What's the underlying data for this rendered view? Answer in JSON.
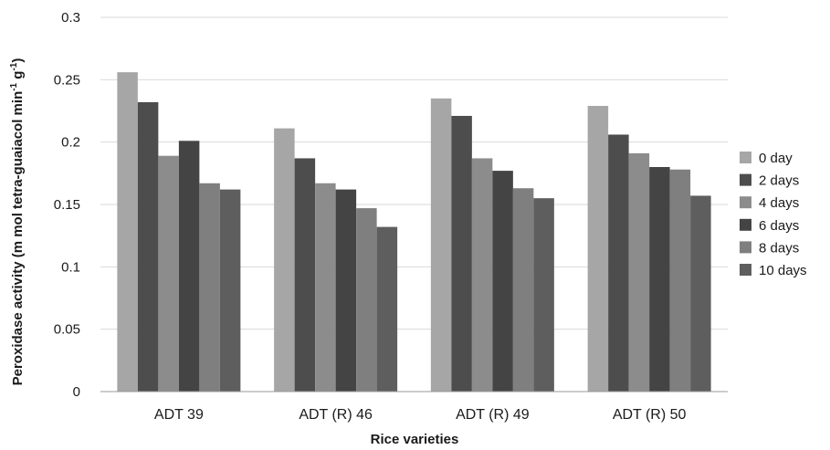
{
  "chart_data": {
    "type": "bar",
    "xlabel": "Rice varieties",
    "ylabel": {
      "main": "Peroxidase activity (m mol tetra-guaiacol min",
      "sup1": "-1",
      "mid": " g",
      "sup2": "-1",
      "end": ")"
    },
    "ylim": [
      0,
      0.3
    ],
    "yticks": [
      "0",
      "0.05",
      "0.1",
      "0.15",
      "0.2",
      "0.25",
      "0.3"
    ],
    "grid": true,
    "legend_position": "right",
    "categories": [
      "ADT 39",
      "ADT (R) 46",
      "ADT (R) 49",
      "ADT (R) 50"
    ],
    "series": [
      {
        "name": "0 day",
        "color": "#a6a6a6",
        "values": [
          0.256,
          0.211,
          0.235,
          0.229
        ]
      },
      {
        "name": "2 days",
        "color": "#4d4d4d",
        "values": [
          0.232,
          0.187,
          0.221,
          0.206
        ]
      },
      {
        "name": "4 days",
        "color": "#8c8c8c",
        "values": [
          0.189,
          0.167,
          0.187,
          0.191
        ]
      },
      {
        "name": "6 days",
        "color": "#444444",
        "values": [
          0.201,
          0.162,
          0.177,
          0.18
        ]
      },
      {
        "name": "8 days",
        "color": "#7f7f7f",
        "values": [
          0.167,
          0.147,
          0.163,
          0.178
        ]
      },
      {
        "name": "10 days",
        "color": "#5e5e5e",
        "values": [
          0.162,
          0.132,
          0.155,
          0.157
        ]
      }
    ]
  }
}
